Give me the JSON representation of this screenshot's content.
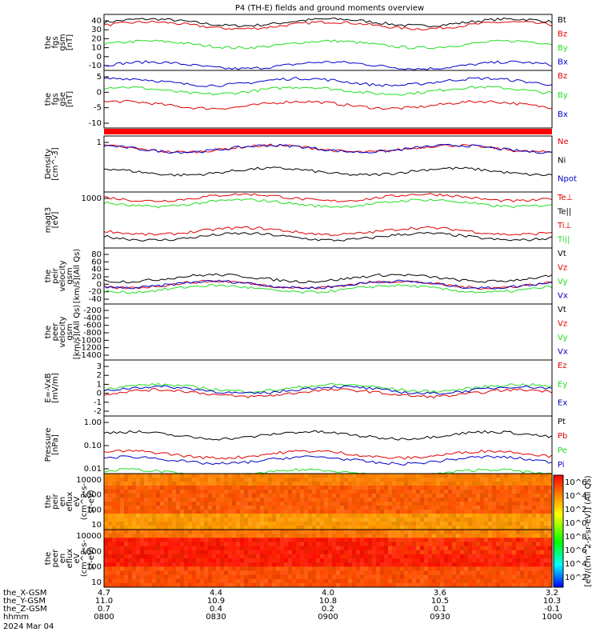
{
  "title": "P4 (TH-E) fields and ground moments overview",
  "colors": {
    "black": "#000000",
    "red": "#e00000",
    "green": "#22dd22",
    "blue": "#0000cc",
    "bar": "#ff0000"
  },
  "chart_data": [
    {
      "id": "fgs_gsm",
      "type": "line",
      "ylabel": [
        "the",
        "fgs",
        "gsm",
        "[nT]"
      ],
      "yticks": [
        40,
        30,
        20,
        10,
        0,
        -10
      ],
      "ylim": [
        -12,
        44
      ],
      "series": [
        {
          "name": "Bt",
          "color": "black",
          "level": 36
        },
        {
          "name": "Bz",
          "color": "red",
          "level": 33
        },
        {
          "name": "By",
          "color": "green",
          "level": 14
        },
        {
          "name": "Bx",
          "color": "blue",
          "level": -7
        }
      ]
    },
    {
      "id": "fgs_gse",
      "type": "line",
      "ylabel": [
        "the",
        "fgs",
        "gse",
        "[nT]"
      ],
      "yticks": [
        5,
        0,
        -5,
        -10
      ],
      "ylim": [
        -15,
        5
      ],
      "series": [
        {
          "name": "Bz",
          "color": "red",
          "level": -7
        },
        {
          "name": "By",
          "color": "green",
          "level": -2
        },
        {
          "name": "Bx",
          "color": "blue",
          "level": 1
        }
      ]
    },
    {
      "id": "density",
      "type": "line",
      "ylabel": [
        "Density",
        "[cm^-3]"
      ],
      "yticks": [
        1
      ],
      "ylim": [
        0,
        1.1
      ],
      "series": [
        {
          "name": "Ne",
          "color": "red",
          "level": 0.85
        },
        {
          "name": "Ni",
          "color": "black",
          "level": 0.4
        },
        {
          "name": "Npot",
          "color": "blue",
          "level": 0.85
        }
      ]
    },
    {
      "id": "temperature",
      "type": "line",
      "ylabel": [
        "magt3",
        "[eV]"
      ],
      "yticks": [
        1000
      ],
      "ylim": [
        0,
        1
      ],
      "series": [
        {
          "name": "Te⊥",
          "color": "red",
          "level": 0.9
        },
        {
          "name": "Te||",
          "color": "black",
          "level": 0.2
        },
        {
          "name": "Ti⊥",
          "color": "red",
          "level": 0.3
        },
        {
          "name": "Ti||",
          "color": "green",
          "level": 0.8
        }
      ]
    },
    {
      "id": "peir_velocity",
      "type": "line",
      "ylabel": [
        "the",
        "peir",
        "velocity",
        "gsm",
        "[km/s](All Qs)"
      ],
      "yticks": [
        80,
        60,
        40,
        20,
        0,
        -20,
        -40
      ],
      "ylim": [
        -40,
        90
      ],
      "series": [
        {
          "name": "Vt",
          "color": "black",
          "level": 20
        },
        {
          "name": "Vz",
          "color": "red",
          "level": 5
        },
        {
          "name": "Vy",
          "color": "green",
          "level": -5
        },
        {
          "name": "Vx",
          "color": "blue",
          "level": 5
        }
      ]
    },
    {
      "id": "peer_velocity",
      "type": "line",
      "ylabel": [
        "the",
        "peer",
        "velocity",
        "gsm",
        "[km/s](All Qs)"
      ],
      "yticks": [
        -200,
        -400,
        -600,
        -800,
        -1000,
        -1200,
        -1400
      ],
      "ylim": [
        -1450,
        -100
      ],
      "series": [
        {
          "name": "Vt",
          "color": "black"
        },
        {
          "name": "Vz",
          "color": "red"
        },
        {
          "name": "Vy",
          "color": "green"
        },
        {
          "name": "Vx",
          "color": "blue"
        }
      ]
    },
    {
      "id": "efield",
      "type": "line",
      "ylabel": [
        "E=-VxB",
        "[mV/m]"
      ],
      "yticks": [
        3,
        2,
        1,
        0,
        -1,
        -2
      ],
      "ylim": [
        -2.2,
        3.2
      ],
      "series": [
        {
          "name": "Ez",
          "color": "red",
          "level": 0
        },
        {
          "name": "Ey",
          "color": "green",
          "level": 0.5
        },
        {
          "name": "Ex",
          "color": "blue",
          "level": 0.3
        }
      ]
    },
    {
      "id": "pressure",
      "type": "line",
      "ylabel": [
        "Pressure",
        "[nPa]"
      ],
      "yticks": [
        "1.00",
        "0.10",
        "0.01"
      ],
      "ylim": [
        0.005,
        1.5
      ],
      "series": [
        {
          "name": "Pt",
          "color": "black",
          "level": 1.0
        },
        {
          "name": "Pb",
          "color": "red",
          "level": 0.5
        },
        {
          "name": "Pe",
          "color": "green",
          "level": 0.02
        },
        {
          "name": "Pi",
          "color": "blue",
          "level": 0.35
        }
      ]
    },
    {
      "id": "peir_eflux",
      "type": "heatmap",
      "ylabel": [
        "the",
        "peir",
        "en",
        "eflux",
        "eV",
        "(cm^2-s-",
        "sr-eV)"
      ],
      "yticks": [
        10000,
        1000,
        100,
        10
      ]
    },
    {
      "id": "peer_eflux",
      "type": "heatmap",
      "ylabel": [
        "the",
        "peer",
        "en",
        "eflux",
        "eV",
        "(cm^2-s-",
        "sr-eV)"
      ],
      "yticks": [
        10000,
        1000,
        100,
        10
      ]
    }
  ],
  "colorbar": {
    "ticks": [
      "10^6",
      "10^4",
      "10^2",
      "10^0",
      "10^8",
      "10^6",
      "10^4",
      "10^2"
    ],
    "label": "[eV/(cm^2-s-sr-eV)] (All Qs)"
  },
  "xaxis": {
    "rows": [
      {
        "name": "the_X-GSM",
        "values": [
          "4.7",
          "4.4",
          "4.0",
          "3.6",
          "3.2"
        ]
      },
      {
        "name": "the_Y-GSM",
        "values": [
          "11.0",
          "10.9",
          "10.8",
          "10.5",
          "10.3"
        ]
      },
      {
        "name": "the_Z-GSM",
        "values": [
          "0.7",
          "0.4",
          "0.2",
          "0.1",
          "-0.1"
        ]
      },
      {
        "name": "hhmm",
        "values": [
          "0800",
          "0830",
          "0900",
          "0930",
          "1000"
        ]
      }
    ],
    "date": "2024 Mar 04"
  }
}
